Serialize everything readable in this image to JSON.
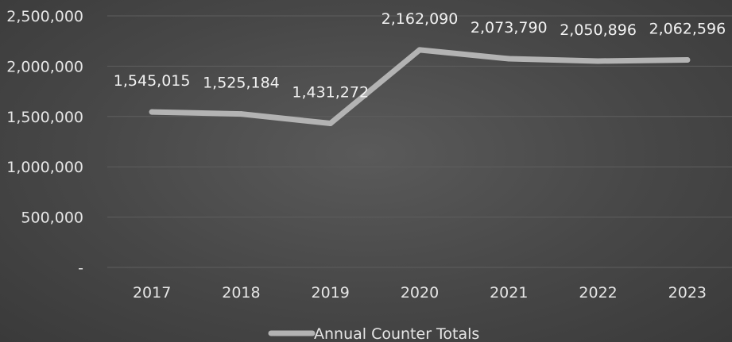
{
  "chart_data": {
    "type": "line",
    "categories": [
      "2017",
      "2018",
      "2019",
      "2020",
      "2021",
      "2022",
      "2023"
    ],
    "series": [
      {
        "name": "Annual Counter Totals",
        "values": [
          1545015,
          1525184,
          1431272,
          2162090,
          2073790,
          2050896,
          2062596
        ],
        "labels": [
          "1,545,015",
          "1,525,184",
          "1,431,272",
          "2,162,090",
          "2,073,790",
          "2,050,896",
          "2,062,596"
        ]
      }
    ],
    "ylim": [
      0,
      2500000
    ],
    "yticks": [
      0,
      500000,
      1000000,
      1500000,
      2000000,
      2500000
    ],
    "ytick_labels": [
      "-",
      "500,000",
      "1,000,000",
      "1,500,000",
      "2,000,000",
      "2,500,000"
    ],
    "grid": true,
    "legend_position": "bottom",
    "colors": {
      "line": "#b3b3b3",
      "grid": "#5e5e5e",
      "text": "#e6e6e6"
    }
  }
}
